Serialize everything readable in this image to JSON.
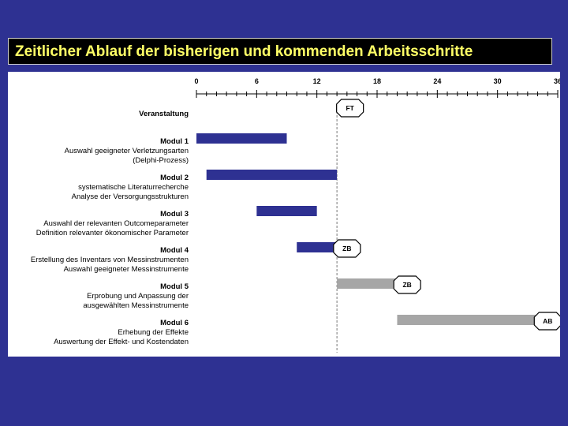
{
  "slide": {
    "title": "Zeitlicher Ablauf der bisherigen und kommenden Arbeitsschritte",
    "colors": {
      "background": "#2e3192",
      "title_text": "#ffff66",
      "title_box": "#000000",
      "past_bar": "#2e3192",
      "future_bar": "#a6a6a6"
    }
  },
  "chart_data": {
    "type": "gantt",
    "x_ticks": [
      0,
      6,
      12,
      18,
      24,
      30,
      36
    ],
    "xlim": [
      0,
      36
    ],
    "reference_line_x": 14,
    "rows": [
      {
        "lines": [
          "Veranstaltung"
        ],
        "bold_first": true
      },
      {
        "lines": [
          "Modul 1",
          "Auswahl geeigneter Verletzungsarten",
          "(Delphi-Prozess)"
        ],
        "bold_first": true
      },
      {
        "lines": [
          "Modul 2",
          "systematische Literaturrecherche",
          "Analyse der Versorgungsstrukturen"
        ],
        "bold_first": true
      },
      {
        "lines": [
          "Modul 3",
          "Auswahl der relevanten Outcomeparameter",
          "Definition relevanter ökonomischer Parameter"
        ],
        "bold_first": true
      },
      {
        "lines": [
          "Modul 4",
          "Erstellung des Inventars von Messinstrumenten",
          "Auswahl geeigneter Messinstrumente"
        ],
        "bold_first": true
      },
      {
        "lines": [
          "Modul 5",
          "Erprobung und Anpassung der",
          "ausgewählten Messinstrumente"
        ],
        "bold_first": true
      },
      {
        "lines": [
          "Modul 6",
          "Erhebung der Effekte",
          "Auswertung der Effekt- und Kostendaten"
        ],
        "bold_first": true
      }
    ],
    "bars": [
      {
        "row": 1,
        "start": 0,
        "end": 9,
        "status": "past"
      },
      {
        "row": 2,
        "start": 1,
        "end": 14,
        "status": "past"
      },
      {
        "row": 3,
        "start": 6,
        "end": 12,
        "status": "past"
      },
      {
        "row": 4,
        "start": 10,
        "end": 14,
        "status": "past"
      },
      {
        "row": 5,
        "start": 14,
        "end": 20,
        "status": "future"
      },
      {
        "row": 6,
        "start": 20,
        "end": 34,
        "status": "future"
      }
    ],
    "milestones": [
      {
        "row": 0,
        "x": 15.3,
        "label": "FT"
      },
      {
        "row": 4,
        "x": 15,
        "label": "ZB"
      },
      {
        "row": 5,
        "x": 21,
        "label": "ZB"
      },
      {
        "row": 6,
        "x": 35,
        "label": "AB"
      }
    ]
  }
}
